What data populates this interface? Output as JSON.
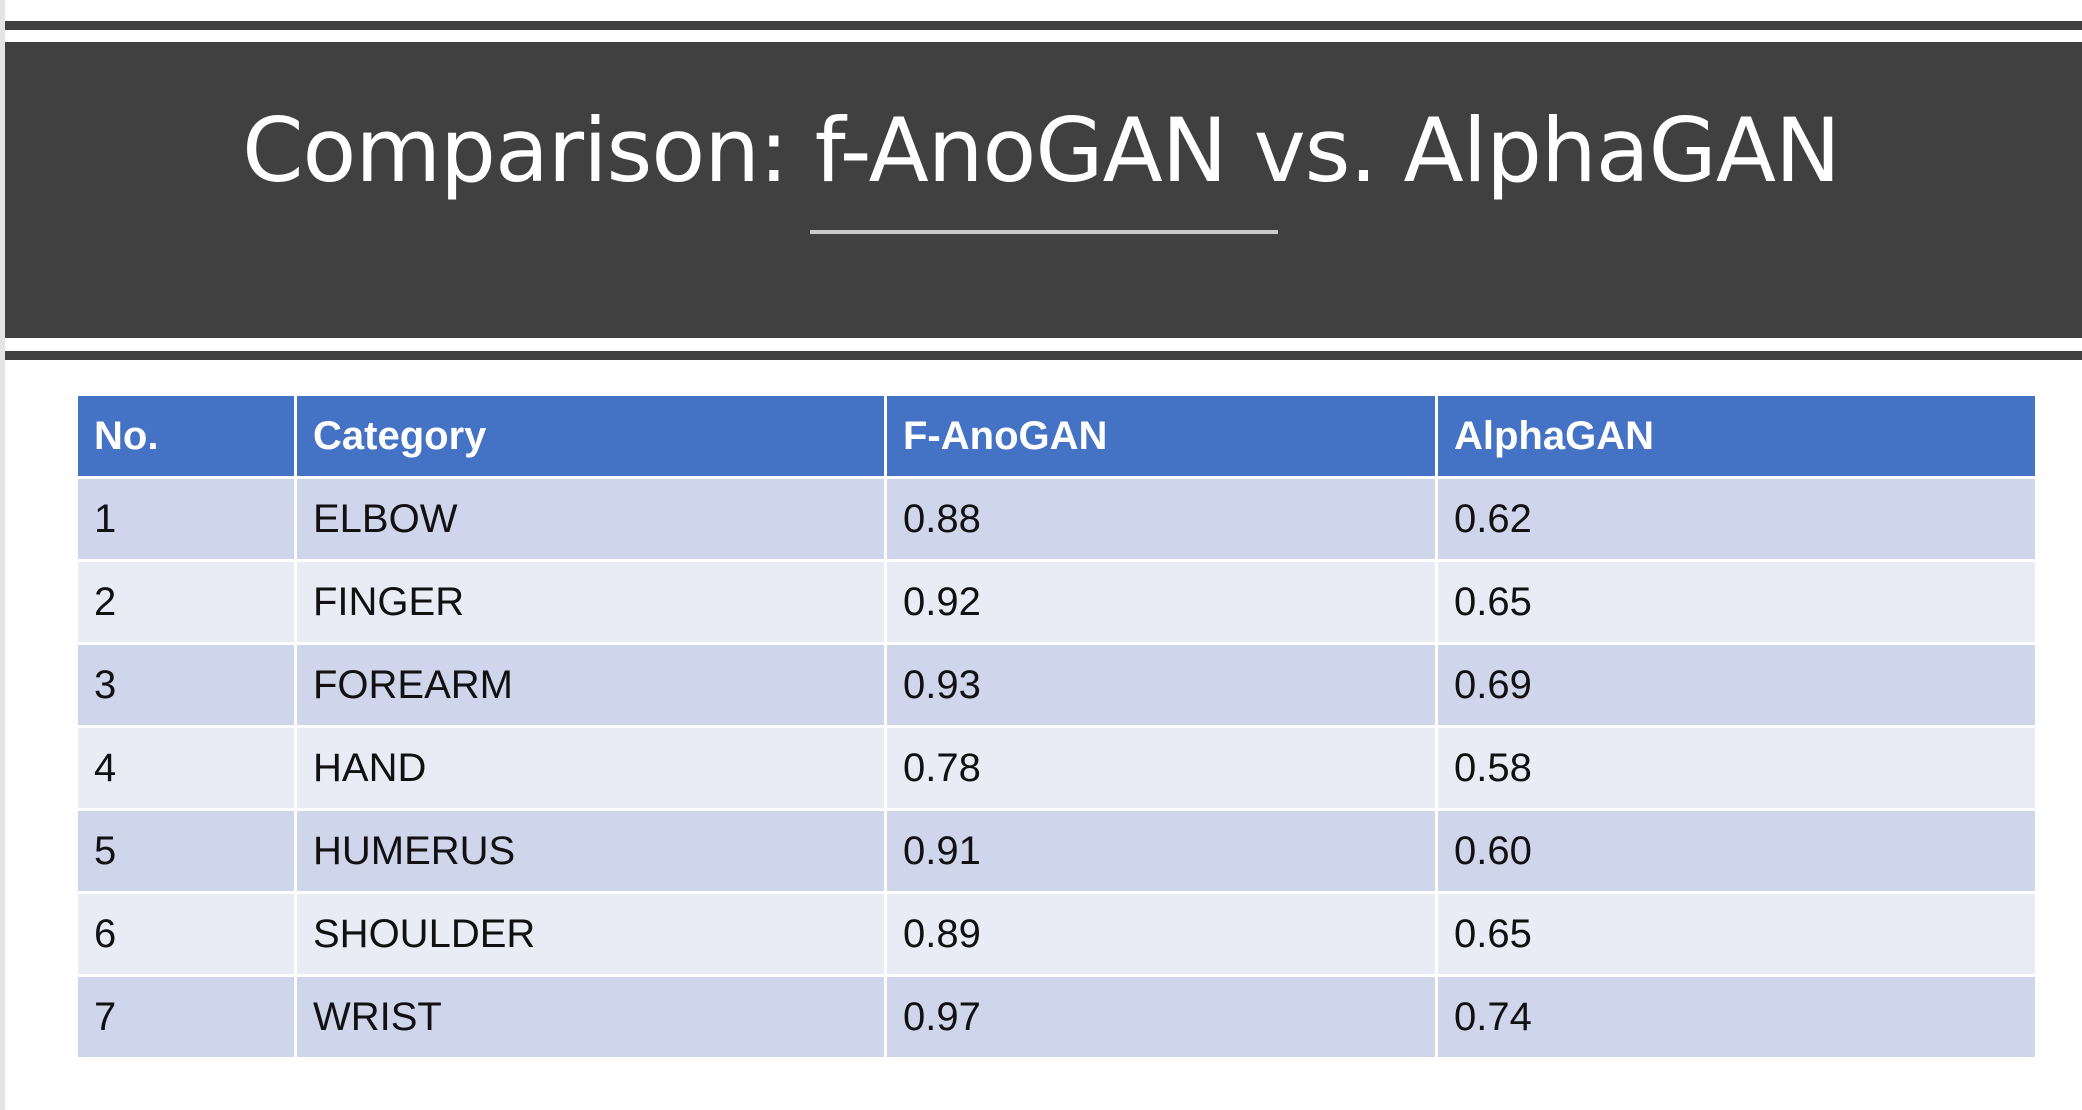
{
  "slide": {
    "title": "Comparison: f-AnoGAN vs. AlphaGAN"
  },
  "table": {
    "headers": [
      "No.",
      "Category",
      "F-AnoGAN",
      "AlphaGAN"
    ],
    "rows": [
      [
        "1",
        "ELBOW",
        "0.88",
        "0.62"
      ],
      [
        "2",
        "FINGER",
        "0.92",
        "0.65"
      ],
      [
        "3",
        "FOREARM",
        "0.93",
        "0.69"
      ],
      [
        "4",
        "HAND",
        "0.78",
        "0.58"
      ],
      [
        "5",
        "HUMERUS",
        "0.91",
        "0.60"
      ],
      [
        "6",
        "SHOULDER",
        "0.89",
        "0.65"
      ],
      [
        "7",
        "WRIST",
        "0.97",
        "0.74"
      ]
    ]
  },
  "colors": {
    "banner": "#404040",
    "header_fill": "#4472c4",
    "row_band_dark": "#cfd5ea",
    "row_band_light": "#e9ebf5"
  }
}
